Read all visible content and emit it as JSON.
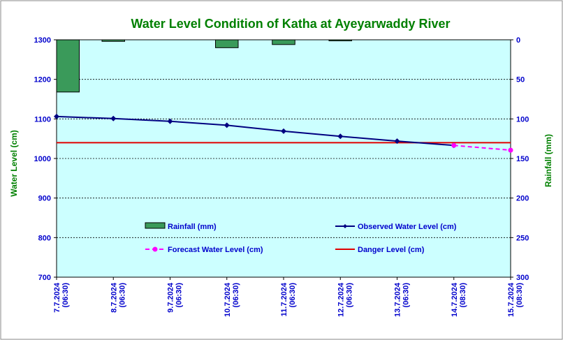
{
  "chart_data": {
    "type": "combo",
    "title": "Water Level Condition of Katha at Ayeyarwaddy River",
    "ylabel": "Water Level (cm)",
    "y2label": "Rainfall (mm)",
    "ylim": [
      700,
      1300
    ],
    "y2lim": [
      0,
      300
    ],
    "y2_inverted": true,
    "y_ticks": [
      700,
      800,
      900,
      1000,
      1100,
      1200,
      1300
    ],
    "y2_ticks": [
      0,
      50,
      100,
      150,
      200,
      250,
      300
    ],
    "categories": [
      [
        "7.7.2024",
        "(06:30)"
      ],
      [
        "8.7.2024",
        "(06:30)"
      ],
      [
        "9.7.2024",
        "(06:30)"
      ],
      [
        "10.7.2024",
        "(06:30)"
      ],
      [
        "11.7.2024",
        "(06:30)"
      ],
      [
        "12.7.2024",
        "(06:30)"
      ],
      [
        "13.7.2024",
        "(06:30)"
      ],
      [
        "14.7.2024",
        "(08:30)"
      ],
      [
        "15.7.2024",
        "(08:30)"
      ]
    ],
    "grid": true,
    "legend_position": "inside-lower",
    "series": [
      {
        "name": "Rainfall (mm)",
        "kind": "bar",
        "axis": "y2",
        "color": "#3a9a5a",
        "values": [
          66,
          2,
          0,
          10,
          6,
          1,
          0,
          0,
          0
        ]
      },
      {
        "name": "Observed Water Level (cm)",
        "kind": "line",
        "axis": "y",
        "color": "#000080",
        "values": [
          1106,
          1101,
          1094,
          1084,
          1069,
          1056,
          1044,
          1033,
          null
        ]
      },
      {
        "name": "Forecast Water Level (cm)",
        "kind": "line",
        "axis": "y",
        "dashed": true,
        "color": "#ff00ff",
        "values": [
          null,
          null,
          null,
          null,
          null,
          null,
          null,
          1033,
          1021
        ]
      },
      {
        "name": "Danger Level (cm)",
        "kind": "hline",
        "axis": "y",
        "color": "#e00000",
        "value": 1040
      }
    ]
  },
  "colors": {
    "plot_background": "#ccffff",
    "title": "#008000",
    "ticks": "#0000cc",
    "axis_labels": "#008000"
  }
}
